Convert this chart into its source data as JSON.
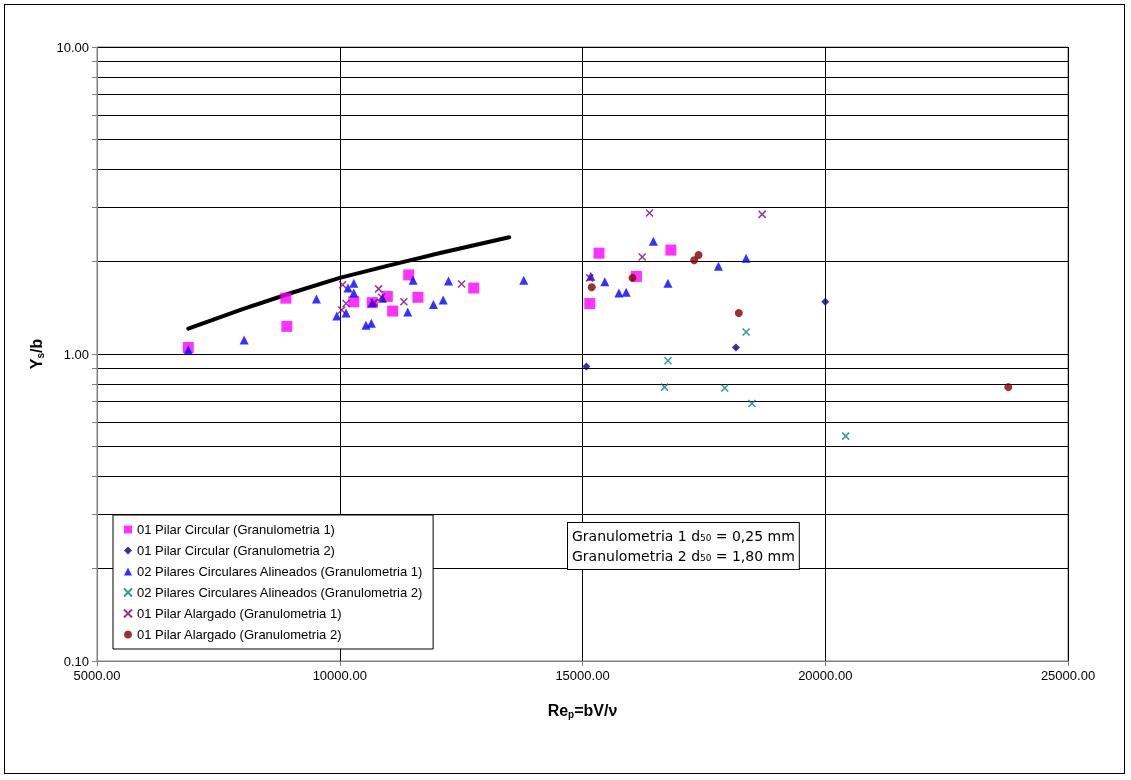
{
  "chart_data": {
    "type": "scatter",
    "xlabel": "Re$_{p}$=bV/ν",
    "ylabel": "Y$_{s}$/b",
    "log": "y",
    "grid": true,
    "legend": "bottom left",
    "xlim": [
      5000,
      25000
    ],
    "xticks": [
      {
        "value": 5000,
        "label": "5000.00"
      },
      {
        "value": 10000,
        "label": "10000.00"
      },
      {
        "value": 15000,
        "label": "15000.00"
      },
      {
        "value": 20000,
        "label": "20000.00"
      },
      {
        "value": 25000,
        "label": "25000.00"
      }
    ],
    "ylim": [
      0.1,
      10
    ],
    "yticks": [
      {
        "value": 0.1,
        "label": "0.10"
      },
      {
        "value": 0.2,
        "label": null
      },
      {
        "value": 0.3,
        "label": null
      },
      {
        "value": 0.4,
        "label": null
      },
      {
        "value": 0.5,
        "label": null
      },
      {
        "value": 0.6,
        "label": null
      },
      {
        "value": 0.7,
        "label": null
      },
      {
        "value": 0.8,
        "label": null
      },
      {
        "value": 0.9,
        "label": null
      },
      {
        "value": 1,
        "label": "1.00"
      },
      {
        "value": 2,
        "label": null
      },
      {
        "value": 3,
        "label": null
      },
      {
        "value": 4,
        "label": null
      },
      {
        "value": 5,
        "label": null
      },
      {
        "value": 6,
        "label": null
      },
      {
        "value": 7,
        "label": null
      },
      {
        "value": 8,
        "label": null
      },
      {
        "value": 9,
        "label": null
      },
      {
        "value": 10,
        "label": "10.00"
      }
    ],
    "annotations": [
      "Granulometria 1 d₅₀ = 0,25 mm",
      "Granulometria 2 d₅₀ = 1,80 mm"
    ],
    "series": [
      {
        "name": "01 Pilar Circular (Granulometria 1)",
        "color": "#ff00ff",
        "marker": "square",
        "x": [
          6880,
          8890,
          8910,
          10290,
          10670,
          10980,
          11090,
          11420,
          11610,
          12760,
          15340,
          16820,
          16110,
          15150
        ],
        "values": [
          1.05,
          1.52,
          1.23,
          1.48,
          1.47,
          1.54,
          1.38,
          1.81,
          1.53,
          1.64,
          2.13,
          2.18,
          1.79,
          1.46
        ]
      },
      {
        "name": "01 Pilar Circular (Granulometria 2)",
        "color": "#000080",
        "marker": "diamond",
        "x": [
          15080,
          18160,
          20000
        ],
        "values": [
          0.91,
          1.05,
          1.48
        ]
      },
      {
        "name": "02 Pilares Circulares Alineados (Granulometria 1)",
        "color": "#0000ff",
        "marker": "triangle",
        "x": [
          6880,
          8030,
          9520,
          9940,
          10130,
          10170,
          10290,
          10290,
          10540,
          10650,
          10670,
          10880,
          11400,
          11510,
          11930,
          12130,
          12240,
          13790,
          15170,
          15460,
          15750,
          15900,
          16460,
          16760,
          17800,
          18370
        ],
        "values": [
          1.03,
          1.11,
          1.51,
          1.33,
          1.36,
          1.64,
          1.7,
          1.58,
          1.24,
          1.26,
          1.47,
          1.52,
          1.37,
          1.74,
          1.45,
          1.5,
          1.73,
          1.74,
          1.79,
          1.72,
          1.58,
          1.59,
          2.33,
          1.7,
          1.93,
          2.05
        ]
      },
      {
        "name": "02 Pilares Circulares Alineados (Granulometria 2)",
        "color": "#008080",
        "marker": "cross",
        "x": [
          16760,
          16690,
          17930,
          18490,
          18370,
          20420
        ],
        "values": [
          0.95,
          0.78,
          0.775,
          0.69,
          1.18,
          0.54
        ]
      },
      {
        "name": "01 Pilar Alargado (Granulometria 1)",
        "color": "#800080",
        "marker": "cross",
        "x": [
          10060,
          10130,
          10040,
          10800,
          10710,
          10860,
          11320,
          12510,
          15150,
          16380,
          16230,
          18700
        ],
        "values": [
          1.68,
          1.46,
          1.39,
          1.63,
          1.47,
          1.53,
          1.48,
          1.69,
          1.77,
          2.88,
          2.07,
          2.85
        ]
      },
      {
        "name": "01 Pilar Alargado (Granulometria 2)",
        "color": "#800000",
        "marker": "circle",
        "x": [
          15190,
          16030,
          17300,
          17390,
          18220,
          23770
        ],
        "values": [
          1.65,
          1.77,
          2.02,
          2.1,
          1.36,
          0.78
        ]
      },
      {
        "type": "line",
        "color": "#000000",
        "marker": "none",
        "line_style": "solid",
        "x": [
          6880,
          8000,
          9000,
          10000,
          11000,
          12000,
          13490
        ],
        "values": [
          1.21,
          1.4,
          1.58,
          1.77,
          1.94,
          2.12,
          2.4
        ]
      }
    ]
  }
}
